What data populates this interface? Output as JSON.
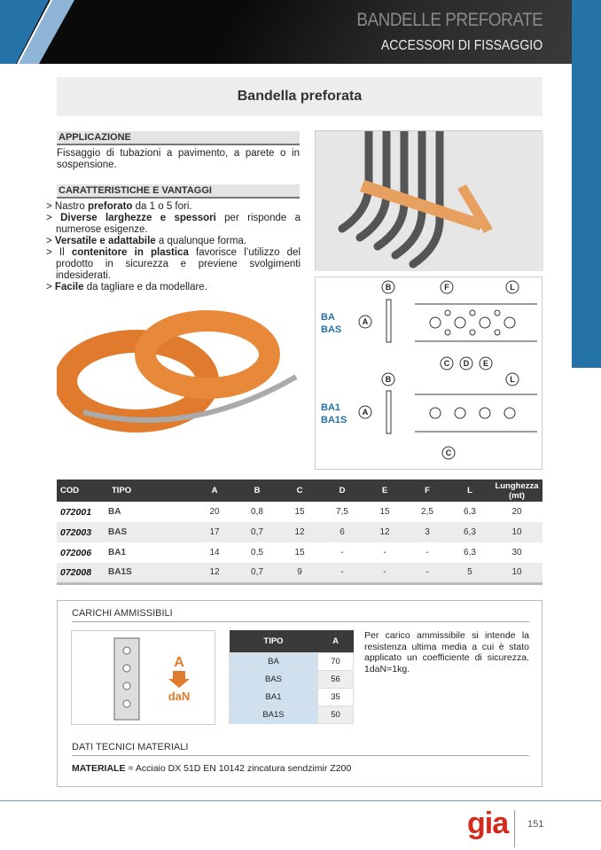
{
  "header": {
    "title": "BANDELLE PREFORATE",
    "subtitle": "ACCESSORI DI FISSAGGIO"
  },
  "page_title": "Bandella preforata",
  "applicazione": {
    "heading": "APPLICAZIONE",
    "text": "Fissaggio di tubazioni a pavimento, a parete o in sospensione."
  },
  "caratteristiche": {
    "heading": "CARATTERISTICHE E VANTAGGI",
    "items": [
      {
        "pre": "> Nastro ",
        "bold": "preforato",
        "post": " da 1 o 5 fori."
      },
      {
        "pre": "> ",
        "bold": "Diverse larghezze e spessori",
        "post": " per risponde a numerose esigenze."
      },
      {
        "pre": "> ",
        "bold": "Versatile e adattabile",
        "post": " a qualunque forma."
      },
      {
        "pre": "> Il ",
        "bold": "contenitore in plastica",
        "post": " favorisce l’utilizzo del prodotto in sicurezza e previene svolgimenti indesiderati."
      },
      {
        "pre": "> ",
        "bold": "Facile",
        "post": " da tagliare e da modellare."
      }
    ]
  },
  "diagram": {
    "type1": [
      "BA",
      "BAS"
    ],
    "type2": [
      "BA1",
      "BA1S"
    ],
    "labels": {
      "a": "A",
      "b": "B",
      "c": "C",
      "d": "D",
      "e": "E",
      "f": "F",
      "l": "L"
    }
  },
  "spec_table": {
    "headers": [
      "COD",
      "TIPO",
      "A",
      "B",
      "C",
      "D",
      "E",
      "F",
      "L",
      "Lunghezza (mt)"
    ],
    "rows": [
      [
        "072001",
        "BA",
        "20",
        "0,8",
        "15",
        "7,5",
        "15",
        "2,5",
        "6,3",
        "20"
      ],
      [
        "072003",
        "BAS",
        "17",
        "0,7",
        "12",
        "6",
        "12",
        "3",
        "6,3",
        "10"
      ],
      [
        "072006",
        "BA1",
        "14",
        "0,5",
        "15",
        "-",
        "-",
        "-",
        "6,3",
        "30"
      ],
      [
        "072008",
        "BA1S",
        "12",
        "0,7",
        "9",
        "-",
        "-",
        "-",
        "5",
        "10"
      ]
    ]
  },
  "carichi": {
    "heading": "CARICHI AMMISSIBILI",
    "icon_label_top": "A",
    "icon_label_bottom": "daN",
    "table": {
      "headers": [
        "TIPO",
        "A"
      ],
      "rows": [
        [
          "BA",
          "70"
        ],
        [
          "BAS",
          "56"
        ],
        [
          "BA1",
          "35"
        ],
        [
          "BA1S",
          "50"
        ]
      ]
    },
    "note": "Per carico ammissibile si intende la resistenza ultima media a cui è stato applicato un coefficiente di sicurezza. 1daN=1kg."
  },
  "dati": {
    "heading": "DATI TECNICI MATERIALI",
    "label": "MATERIALE",
    "text": " = Acciaio DX 51D EN 10142 zincatura sendzimir Z200"
  },
  "footer": {
    "logo": "gia",
    "page": "151"
  },
  "colors": {
    "brand_blue": "#2472a8",
    "accent_orange": "#e07a2c",
    "logo_red": "#d42a1e"
  }
}
